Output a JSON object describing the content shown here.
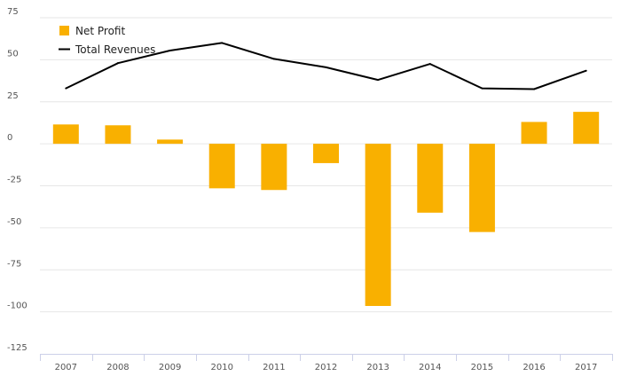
{
  "chart_data": {
    "type": "bar",
    "categories": [
      "2007",
      "2008",
      "2009",
      "2010",
      "2011",
      "2012",
      "2013",
      "2014",
      "2015",
      "2016",
      "2017"
    ],
    "series": [
      {
        "name": "Net Profit",
        "type": "bar",
        "color": "#F9B000",
        "values": [
          11.5,
          11,
          2.5,
          -26.5,
          -27.5,
          -11.5,
          -96.5,
          -41,
          -52.5,
          13,
          19
        ]
      },
      {
        "name": "Total Revenues",
        "type": "line",
        "color": "#000000",
        "values": [
          33,
          48,
          55.5,
          60,
          50.5,
          45.5,
          38,
          47.5,
          33,
          32.5,
          43.5
        ]
      }
    ],
    "y_ticks": [
      "75",
      "50",
      "25",
      "0",
      "-25",
      "-50",
      "-75",
      "-100",
      "-125"
    ],
    "ylim": [
      -125,
      75
    ],
    "grid": true,
    "legend_position": "top-left",
    "title": "",
    "xlabel": "",
    "ylabel": ""
  }
}
